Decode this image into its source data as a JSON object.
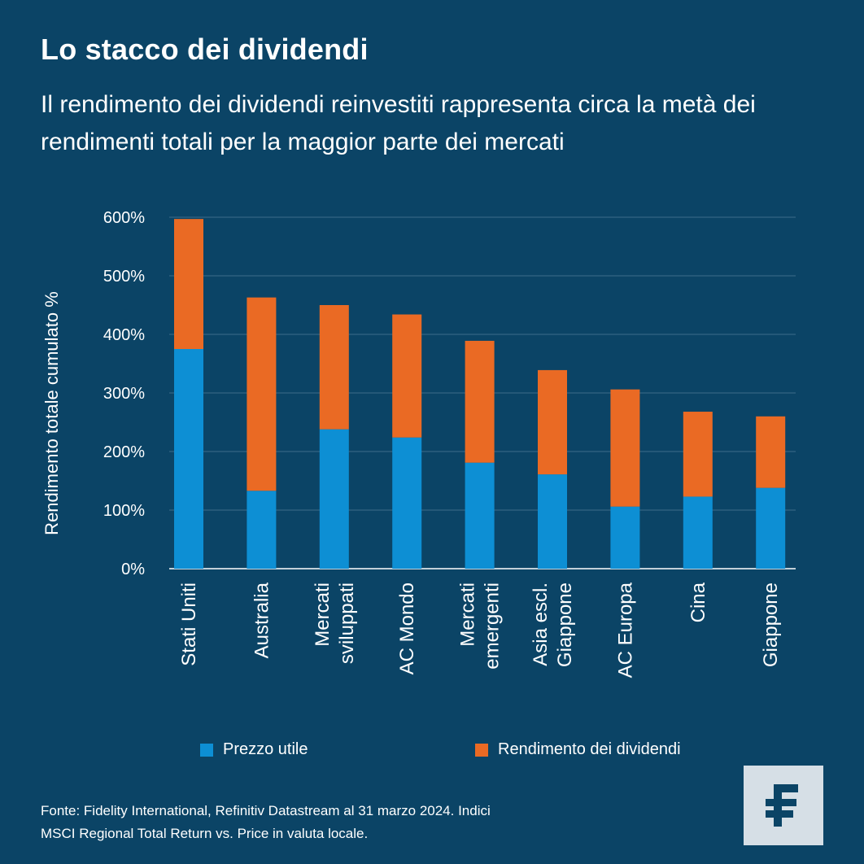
{
  "header": {
    "title": "Lo stacco dei dividendi",
    "subtitle": "Il rendimento dei dividendi reinvestiti rappresenta circa la metà dei rendimenti totali per la maggior parte dei mercati"
  },
  "colors": {
    "background": "#0b4466",
    "price": "#0d8fd4",
    "dividend": "#ea6a24",
    "gridline": "#3c6d8a",
    "logo_bg": "#d6dfe6",
    "logo_mark": "#0b4466"
  },
  "chart_data": {
    "type": "bar",
    "stacked": true,
    "title": "Lo stacco dei dividendi",
    "xlabel": "",
    "ylabel": "Rendimento totale cumulato %",
    "ylim": [
      0,
      600
    ],
    "yticks": [
      0,
      100,
      200,
      300,
      400,
      500,
      600
    ],
    "ytick_labels": [
      "0%",
      "100%",
      "200%",
      "300%",
      "400%",
      "500%",
      "600%"
    ],
    "grid": true,
    "legend_position": "bottom",
    "categories": [
      [
        "Stati Uniti"
      ],
      [
        "Australia"
      ],
      [
        "Mercati",
        "sviluppati"
      ],
      [
        "AC Mondo"
      ],
      [
        "Mercati",
        "emergenti"
      ],
      [
        "Asia escl.",
        "Giappone"
      ],
      [
        "AC Europa"
      ],
      [
        "Cina"
      ],
      [
        "Giappone"
      ]
    ],
    "series": [
      {
        "name": "Prezzo utile",
        "values": [
          375,
          133,
          238,
          224,
          181,
          161,
          106,
          123,
          138
        ]
      },
      {
        "name": "Rendimento dei dividendi",
        "values": [
          222,
          330,
          212,
          210,
          208,
          178,
          200,
          145,
          122
        ]
      }
    ]
  },
  "footer": {
    "source_line_1": "Fonte: Fidelity International, Refinitiv Datastream al 31 marzo 2024. Indici",
    "source_line_2": "MSCI Regional Total Return vs. Price in valuta locale."
  },
  "logo": {
    "icon": "fidelity-logo-icon"
  }
}
